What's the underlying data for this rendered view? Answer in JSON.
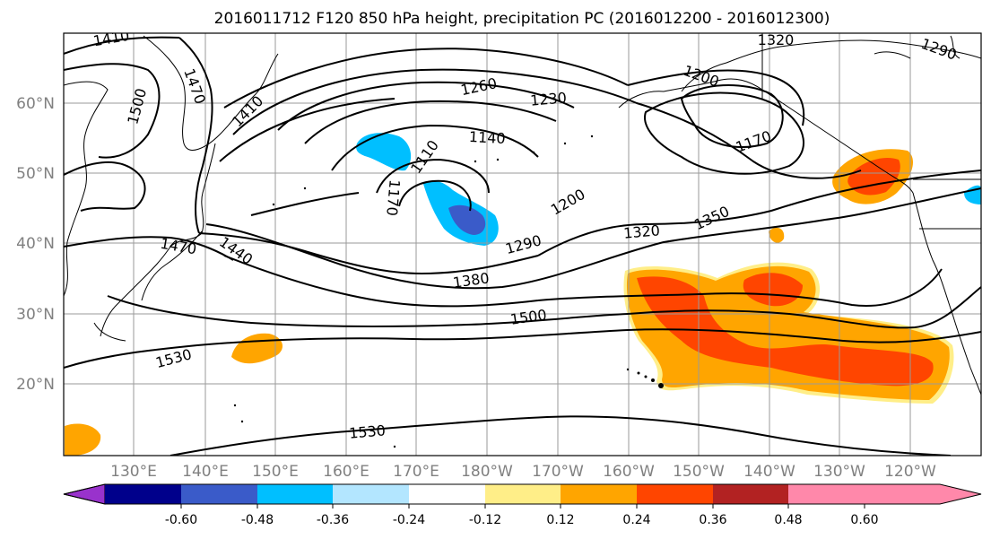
{
  "figure": {
    "title": "2016011712 F120 850 hPa height, precipitation PC (2016012200 - 2016012300)"
  },
  "map": {
    "lat_labels": [
      "60°N",
      "50°N",
      "40°N",
      "30°N",
      "20°N"
    ],
    "lon_labels": [
      "130°E",
      "140°E",
      "150°E",
      "160°E",
      "170°E",
      "180°W",
      "170°W",
      "160°W",
      "150°W",
      "140°W",
      "130°W",
      "120°W"
    ]
  },
  "contour_labels": [
    "1410",
    "1470",
    "1500",
    "1410",
    "1260",
    "1230",
    "1320",
    "1200",
    "1290",
    "1140",
    "1110",
    "1170",
    "1170",
    "1200",
    "1350",
    "1320",
    "1290",
    "1440",
    "1470",
    "1380",
    "1500",
    "1530",
    "1530"
  ],
  "colorbar": {
    "colors": [
      "#9932cc",
      "#00008b",
      "#3a5bc9",
      "#00bfff",
      "#b3e6ff",
      "#ffffff",
      "#ffee88",
      "#ffa500",
      "#ff4500",
      "#b22222",
      "#ff88aa"
    ],
    "tick_labels": [
      "-0.60",
      "-0.48",
      "-0.36",
      "-0.24",
      "-0.12",
      "0.12",
      "0.24",
      "0.36",
      "0.48",
      "0.60"
    ]
  }
}
